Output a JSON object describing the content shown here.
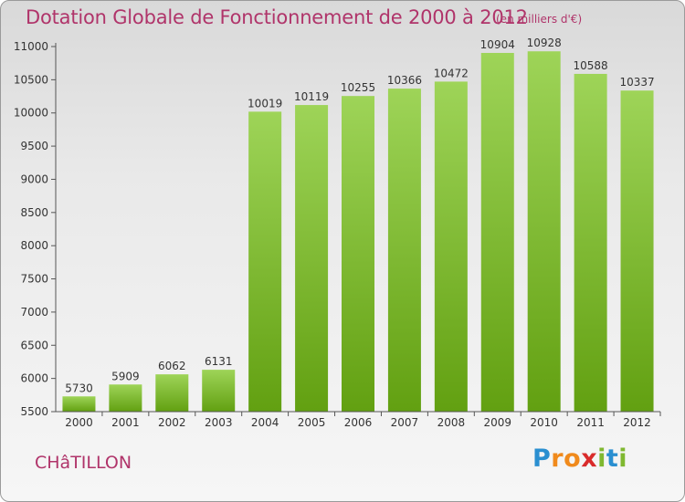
{
  "header": {
    "title": "Dotation Globale de Fonctionnement de 2000 à 2012",
    "unit": "(en milliers d'€)"
  },
  "footer": {
    "city": "CHâTILLON",
    "logo": {
      "letters": [
        "P",
        "r",
        "o",
        "x",
        "i",
        "t",
        "i"
      ],
      "colors": [
        "#2a8fd0",
        "#f08a1c",
        "#f08a1c",
        "#d92b2b",
        "#7fb830",
        "#2a8fd0",
        "#7fb830"
      ]
    }
  },
  "colors": {
    "text_accent": "#b0346a",
    "bar_light": "#9ed458",
    "bar_dark": "#62a011",
    "axis": "#555555"
  },
  "chart_data": {
    "type": "bar",
    "title": "Dotation Globale de Fonctionnement de 2000 à 2012",
    "subtitle": "(en milliers d'€)",
    "categories": [
      "2000",
      "2001",
      "2002",
      "2003",
      "2004",
      "2005",
      "2006",
      "2007",
      "2008",
      "2009",
      "2010",
      "2011",
      "2012"
    ],
    "values": [
      5730,
      5909,
      6062,
      6131,
      10019,
      10119,
      10255,
      10366,
      10472,
      10904,
      10928,
      10588,
      10337
    ],
    "ylim": [
      5500,
      11000
    ],
    "yticks": [
      5500,
      6000,
      6500,
      7000,
      7500,
      8000,
      8500,
      9000,
      9500,
      10000,
      10500,
      11000
    ],
    "grid": false,
    "legend": "none",
    "data_labels": true
  }
}
